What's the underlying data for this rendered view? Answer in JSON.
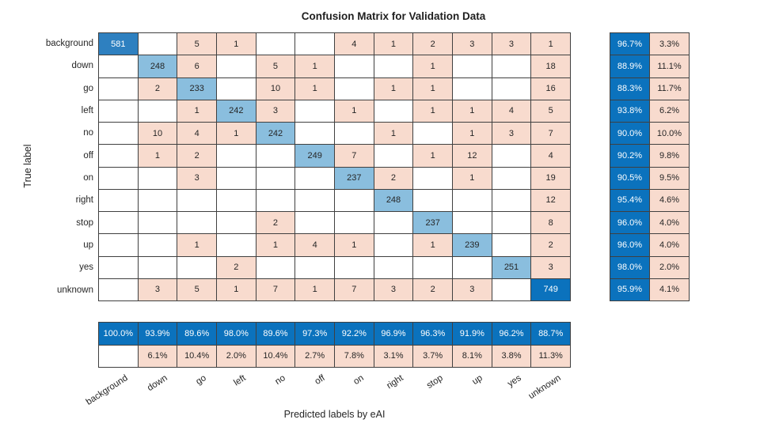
{
  "chart_data": {
    "type": "heatmap",
    "title": "Confusion Matrix for Validation Data",
    "xlabel": "Predicted labels by eAI",
    "ylabel": "True label",
    "classes": [
      "background",
      "down",
      "go",
      "left",
      "no",
      "off",
      "on",
      "right",
      "stop",
      "up",
      "yes",
      "unknown"
    ],
    "matrix": [
      [
        581,
        null,
        5,
        1,
        null,
        null,
        4,
        1,
        2,
        3,
        3,
        1
      ],
      [
        null,
        248,
        6,
        null,
        5,
        1,
        null,
        null,
        1,
        null,
        null,
        18
      ],
      [
        null,
        2,
        233,
        null,
        10,
        1,
        null,
        1,
        1,
        null,
        null,
        16
      ],
      [
        null,
        null,
        1,
        242,
        3,
        null,
        1,
        null,
        1,
        1,
        4,
        5
      ],
      [
        null,
        10,
        4,
        1,
        242,
        null,
        null,
        1,
        null,
        1,
        3,
        7
      ],
      [
        null,
        1,
        2,
        null,
        null,
        249,
        7,
        null,
        1,
        12,
        null,
        4
      ],
      [
        null,
        null,
        3,
        null,
        null,
        null,
        237,
        2,
        null,
        1,
        null,
        19
      ],
      [
        null,
        null,
        null,
        null,
        null,
        null,
        null,
        248,
        null,
        null,
        null,
        12
      ],
      [
        null,
        null,
        null,
        null,
        2,
        null,
        null,
        null,
        237,
        null,
        null,
        8
      ],
      [
        null,
        null,
        1,
        null,
        1,
        4,
        1,
        null,
        1,
        239,
        null,
        2
      ],
      [
        null,
        null,
        null,
        2,
        null,
        null,
        null,
        null,
        null,
        null,
        251,
        3
      ],
      [
        null,
        3,
        5,
        1,
        7,
        1,
        7,
        3,
        2,
        3,
        null,
        749
      ]
    ],
    "row_summary": [
      [
        "96.7%",
        "3.3%"
      ],
      [
        "88.9%",
        "11.1%"
      ],
      [
        "88.3%",
        "11.7%"
      ],
      [
        "93.8%",
        "6.2%"
      ],
      [
        "90.0%",
        "10.0%"
      ],
      [
        "90.2%",
        "9.8%"
      ],
      [
        "90.5%",
        "9.5%"
      ],
      [
        "95.4%",
        "4.6%"
      ],
      [
        "96.0%",
        "4.0%"
      ],
      [
        "96.0%",
        "4.0%"
      ],
      [
        "98.0%",
        "2.0%"
      ],
      [
        "95.9%",
        "4.1%"
      ]
    ],
    "col_summary_correct": [
      "100.0%",
      "93.9%",
      "89.6%",
      "98.0%",
      "89.6%",
      "97.3%",
      "92.2%",
      "96.9%",
      "96.3%",
      "91.9%",
      "96.2%",
      "88.7%"
    ],
    "col_summary_error": [
      "",
      "6.1%",
      "10.4%",
      "2.0%",
      "10.4%",
      "2.7%",
      "7.8%",
      "3.1%",
      "3.7%",
      "8.1%",
      "3.8%",
      "11.3%"
    ],
    "layout_hints": {
      "grid": "on",
      "legend": "none",
      "row_summary_position": "right",
      "column_summary_position": "bottom",
      "x_tick_rotation_deg": -33
    },
    "colors": {
      "blue_strong": "#0b72bd",
      "blue_medium": "#2e80c0",
      "blue_light": "#8abede",
      "pink": "#f8dbce",
      "empty": "#ffffff",
      "grid_line": "#404040",
      "text_dark": "#262626",
      "text_light": "#ffffff"
    },
    "color_thresholds": {
      "diag_strong_min": 600,
      "diag_medium_min": 400
    }
  }
}
